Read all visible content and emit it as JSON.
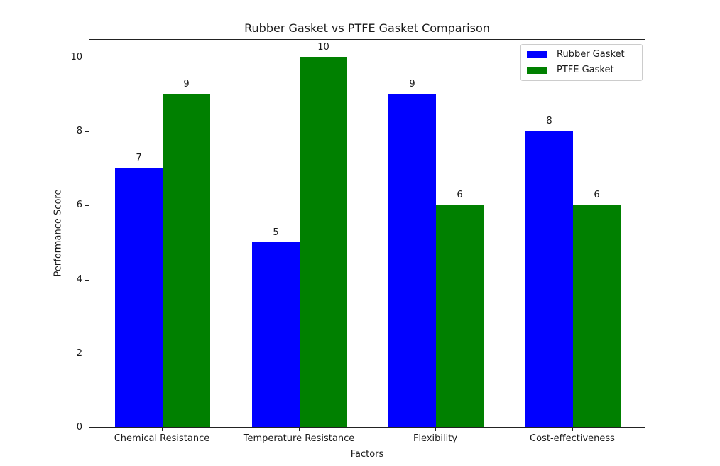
{
  "chart_data": {
    "type": "bar",
    "title": "Rubber Gasket vs PTFE Gasket Comparison",
    "xlabel": "Factors",
    "ylabel": "Performance Score",
    "categories": [
      "Chemical Resistance",
      "Temperature Resistance",
      "Flexibility",
      "Cost-effectiveness"
    ],
    "series": [
      {
        "name": "Rubber Gasket",
        "color": "#0000ff",
        "values": [
          7,
          5,
          9,
          8
        ]
      },
      {
        "name": "PTFE Gasket",
        "color": "#008000",
        "values": [
          9,
          10,
          6,
          6
        ]
      }
    ],
    "ylim": [
      0,
      10.5
    ],
    "yticks": [
      "0",
      "2",
      "4",
      "6",
      "8",
      "10"
    ],
    "grid": false,
    "legend_position": "upper right",
    "data_labels": true
  }
}
